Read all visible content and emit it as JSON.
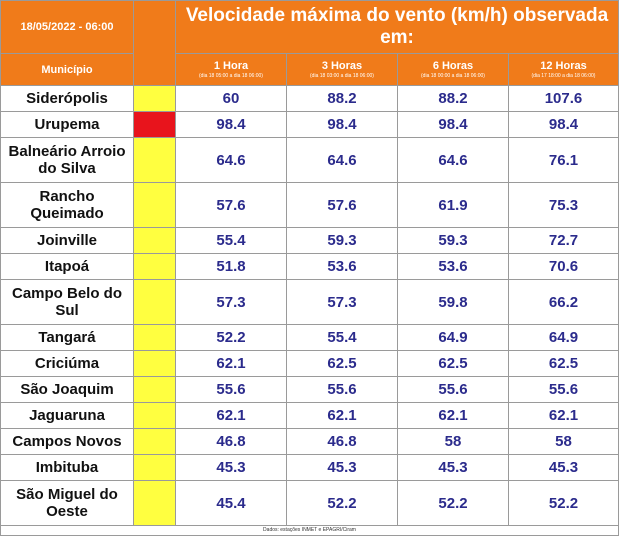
{
  "header": {
    "date_time": "18/05/2022 - 06:00",
    "title": "Velocidade máxima do vento (km/h) observada em:",
    "municipality_label": "Município",
    "periods": [
      {
        "label": "1 Hora",
        "range": "(dia 18 05:00 a dia 18 06:00)"
      },
      {
        "label": "3 Horas",
        "range": "(dia 18 03:00 a dia 18 06:00)"
      },
      {
        "label": "6 Horas",
        "range": "(dia 18 00:00 a dia 18 06:00)"
      },
      {
        "label": "12 Horas",
        "range": "(dia 17 18:00 a dia 18 06:00)"
      }
    ]
  },
  "colors": {
    "header_orange": "#f07b1a",
    "alert_yellow": "#ffff40",
    "alert_red": "#e8141c",
    "value_blue": "#2b2b8c"
  },
  "rows": [
    {
      "city": "Siderópolis",
      "alert": "yellow",
      "values": [
        "60",
        "88.2",
        "88.2",
        "107.6"
      ]
    },
    {
      "city": "Urupema",
      "alert": "red",
      "values": [
        "98.4",
        "98.4",
        "98.4",
        "98.4"
      ]
    },
    {
      "city": "Balneário Arroio do Silva",
      "alert": "yellow",
      "values": [
        "64.6",
        "64.6",
        "64.6",
        "76.1"
      ]
    },
    {
      "city": "Rancho Queimado",
      "alert": "yellow",
      "values": [
        "57.6",
        "57.6",
        "61.9",
        "75.3"
      ]
    },
    {
      "city": "Joinville",
      "alert": "yellow",
      "values": [
        "55.4",
        "59.3",
        "59.3",
        "72.7"
      ]
    },
    {
      "city": "Itapoá",
      "alert": "yellow",
      "values": [
        "51.8",
        "53.6",
        "53.6",
        "70.6"
      ]
    },
    {
      "city": "Campo Belo do Sul",
      "alert": "yellow",
      "values": [
        "57.3",
        "57.3",
        "59.8",
        "66.2"
      ]
    },
    {
      "city": "Tangará",
      "alert": "yellow",
      "values": [
        "52.2",
        "55.4",
        "64.9",
        "64.9"
      ]
    },
    {
      "city": "Criciúma",
      "alert": "yellow",
      "values": [
        "62.1",
        "62.5",
        "62.5",
        "62.5"
      ]
    },
    {
      "city": "São Joaquim",
      "alert": "yellow",
      "values": [
        "55.6",
        "55.6",
        "55.6",
        "55.6"
      ]
    },
    {
      "city": "Jaguaruna",
      "alert": "yellow",
      "values": [
        "62.1",
        "62.1",
        "62.1",
        "62.1"
      ]
    },
    {
      "city": "Campos Novos",
      "alert": "yellow",
      "values": [
        "46.8",
        "46.8",
        "58",
        "58"
      ]
    },
    {
      "city": "Imbituba",
      "alert": "yellow",
      "values": [
        "45.3",
        "45.3",
        "45.3",
        "45.3"
      ]
    },
    {
      "city": "São Miguel do Oeste",
      "alert": "yellow",
      "values": [
        "45.4",
        "52.2",
        "52.2",
        "52.2"
      ]
    }
  ],
  "footer": "Dados: estações INMET e EPAGRI/Ciram"
}
